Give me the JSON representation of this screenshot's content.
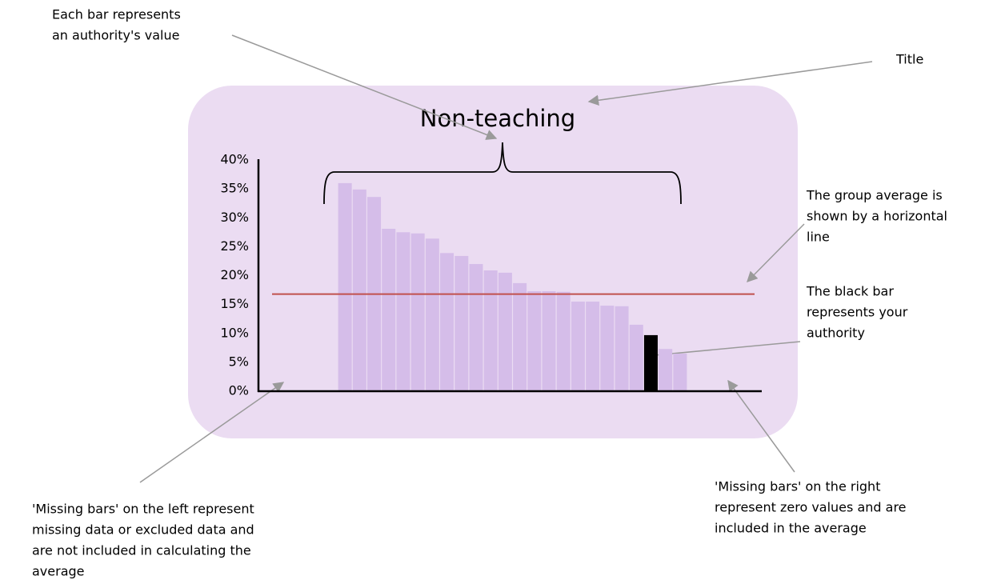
{
  "chart_data": {
    "type": "bar",
    "title": "Non-teaching",
    "categories": [
      null,
      null,
      null,
      null,
      null,
      null,
      null,
      null,
      null,
      null,
      null,
      null,
      null,
      null,
      null,
      null,
      null,
      null,
      null,
      null,
      null,
      null,
      null,
      null,
      null,
      null,
      null,
      null,
      null,
      null,
      null,
      null,
      null,
      null
    ],
    "values": [
      null,
      null,
      null,
      null,
      null,
      36.0,
      34.9,
      33.6,
      28.1,
      27.5,
      27.3,
      26.4,
      23.9,
      23.4,
      22.0,
      20.9,
      20.5,
      18.7,
      17.3,
      17.3,
      17.2,
      15.5,
      15.5,
      14.8,
      14.7,
      11.5,
      9.7,
      7.3,
      6.5,
      0,
      0,
      0,
      0,
      0
    ],
    "colors": [
      "#d5bde9",
      "#d5bde9",
      "#d5bde9",
      "#d5bde9",
      "#d5bde9",
      "#d5bde9",
      "#d5bde9",
      "#d5bde9",
      "#d5bde9",
      "#d5bde9",
      "#d5bde9",
      "#d5bde9",
      "#d5bde9",
      "#d5bde9",
      "#d5bde9",
      "#d5bde9",
      "#d5bde9",
      "#d5bde9",
      "#d5bde9",
      "#d5bde9",
      "#d5bde9",
      "#d5bde9",
      "#d5bde9",
      "#d5bde9",
      "#d5bde9",
      "#d5bde9",
      "#000000",
      "#d5bde9",
      "#d5bde9",
      "#d5bde9",
      "#d5bde9",
      "#d5bde9",
      "#d5bde9",
      "#d5bde9"
    ],
    "average": 16.8,
    "average_color": "#c0504d",
    "ylim": [
      0,
      40
    ],
    "yticks": [
      {
        "value": 0,
        "label": "0%"
      },
      {
        "value": 5,
        "label": "5%"
      },
      {
        "value": 10,
        "label": "10%"
      },
      {
        "value": 15,
        "label": "15%"
      },
      {
        "value": 20,
        "label": "20%"
      },
      {
        "value": 25,
        "label": "25%"
      },
      {
        "value": 30,
        "label": "30%"
      },
      {
        "value": 35,
        "label": "35%"
      },
      {
        "value": 40,
        "label": "40%"
      }
    ],
    "grid": false,
    "annotations": [
      {
        "lines": [
          "Each bar represents",
          "an authority's value"
        ]
      },
      {
        "lines": [
          "Title"
        ]
      },
      {
        "lines": [
          "The group average is",
          "shown by a horizontal",
          "line"
        ]
      },
      {
        "lines": [
          "The black bar",
          "represents your",
          "authority"
        ]
      },
      {
        "lines": [
          "'Missing bars' on the right",
          "represent zero values and are",
          "included in the average"
        ]
      },
      {
        "lines": [
          "'Missing bars' on the left represent",
          "missing data or excluded data and",
          "are not included in calculating the",
          "average"
        ]
      }
    ]
  }
}
